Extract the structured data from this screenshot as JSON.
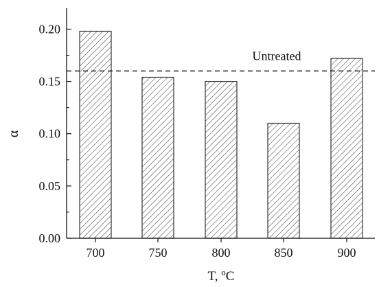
{
  "chart_data": {
    "type": "bar",
    "title": "",
    "xlabel": "T, °C",
    "xlabel_parts": {
      "text": "T, ",
      "sup": "o",
      "unit": "C"
    },
    "ylabel": "α",
    "categories": [
      "700",
      "750",
      "800",
      "850",
      "900"
    ],
    "values": [
      0.198,
      0.154,
      0.15,
      0.11,
      0.172
    ],
    "ylim": [
      0,
      0.22
    ],
    "yticks": [
      0.0,
      0.05,
      0.1,
      0.15,
      0.2
    ],
    "ytick_labels": [
      "0.00",
      "0.05",
      "0.10",
      "0.15",
      "0.20"
    ],
    "bar_fill": "hatched",
    "grid": false,
    "reference_line": {
      "label": "Untreated",
      "value": 0.16,
      "style": "dashed"
    },
    "colors": {
      "axis": "#111111",
      "bar_outline": "#333333",
      "hatch": "#444444",
      "reference": "#222222"
    }
  }
}
